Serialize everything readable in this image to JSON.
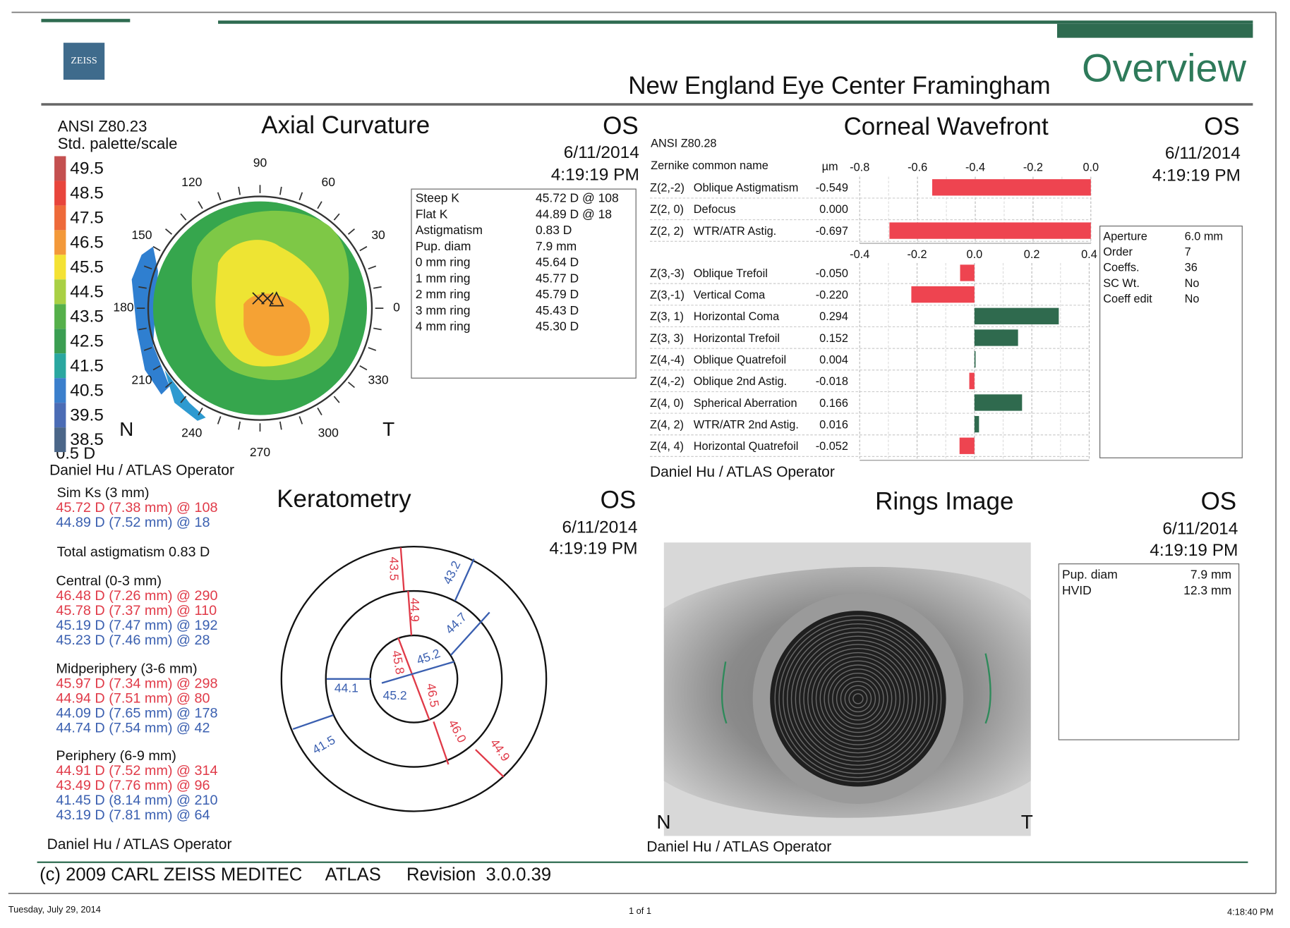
{
  "header": {
    "logo": "ZEISS",
    "clinic": "New England Eye Center Framingham",
    "title": "Overview"
  },
  "axial": {
    "title": "Axial Curvature",
    "eye": "OS",
    "date": "6/11/2014",
    "time": "4:19:19 PM",
    "standard": "ANSI Z80.23",
    "palette": "Std. palette/scale",
    "scale": {
      "values": [
        49.5,
        48.5,
        47.5,
        46.5,
        45.5,
        44.5,
        43.5,
        42.5,
        41.5,
        40.5,
        39.5,
        38.5
      ],
      "colors": [
        "#c45050",
        "#e8453c",
        "#ee6a3a",
        "#f3993a",
        "#f4e234",
        "#a9d044",
        "#55b04a",
        "#3b9e52",
        "#2aa7a0",
        "#3b7fcc",
        "#4b6cb5",
        "#4b6688"
      ],
      "step": "0.5 D"
    },
    "angles": [
      90,
      120,
      60,
      150,
      30,
      180,
      0,
      210,
      330,
      240,
      300,
      270
    ],
    "nasal": "N",
    "temporal": "T",
    "k_table": [
      [
        "Steep K",
        "45.72 D @ 108"
      ],
      [
        "Flat K",
        "44.89 D @ 18"
      ],
      [
        "Astigmatism",
        "0.83 D"
      ],
      [
        "Pup. diam",
        "7.9 mm"
      ],
      [
        "0 mm ring",
        "45.64 D"
      ],
      [
        "1 mm ring",
        "45.77 D"
      ],
      [
        "2 mm ring",
        "45.79 D"
      ],
      [
        "3 mm ring",
        "45.43 D"
      ],
      [
        "4 mm ring",
        "45.30 D"
      ]
    ],
    "operator": "Daniel Hu / ATLAS Operator"
  },
  "wavefront": {
    "title": "Corneal Wavefront",
    "eye": "OS",
    "date": "6/11/2014",
    "time": "4:19:19 PM",
    "standard": "ANSI Z80.28",
    "name_header": "Zernike common name",
    "unit": "µm",
    "colors": {
      "negative": "#ee4450",
      "positive": "#2f6a4e"
    },
    "top_chart": {
      "xlim": [
        -0.8,
        0
      ],
      "xticks": [
        -0.8,
        -0.6,
        -0.4,
        -0.2,
        {
          "value": 0,
          "label": "0.0"
        }
      ],
      "terms": [
        {
          "code": "Z(2,-2)",
          "name": "Oblique Astigmatism",
          "value": -0.549,
          "label": "-0.549"
        },
        {
          "code": "Z(2, 0)",
          "name": "Defocus",
          "value": 0,
          "label": "0.000"
        },
        {
          "code": "Z(2, 2)",
          "name": "WTR/ATR Astig.",
          "value": -0.697,
          "label": "-0.697"
        }
      ]
    },
    "bottom_chart": {
      "xlim": [
        -0.4,
        0.4
      ],
      "xticks": [
        -0.4,
        -0.2,
        {
          "value": 0,
          "label": "0.0"
        },
        0.2,
        0.4
      ],
      "terms": [
        {
          "code": "Z(3,-3)",
          "name": "Oblique Trefoil",
          "value": -0.05,
          "label": "-0.050"
        },
        {
          "code": "Z(3,-1)",
          "name": "Vertical Coma",
          "value": -0.22,
          "label": "-0.220"
        },
        {
          "code": "Z(3, 1)",
          "name": "Horizontal Coma",
          "value": 0.294,
          "label": "0.294"
        },
        {
          "code": "Z(3, 3)",
          "name": "Horizontal Trefoil",
          "value": 0.152,
          "label": "0.152"
        },
        {
          "code": "Z(4,-4)",
          "name": "Oblique Quatrefoil",
          "value": 0.004,
          "label": "0.004"
        },
        {
          "code": "Z(4,-2)",
          "name": "Oblique 2nd Astig.",
          "value": -0.018,
          "label": "-0.018"
        },
        {
          "code": "Z(4, 0)",
          "name": "Spherical Aberration",
          "value": 0.166,
          "label": "0.166"
        },
        {
          "code": "Z(4, 2)",
          "name": "WTR/ATR 2nd Astig.",
          "value": 0.016,
          "label": "0.016"
        },
        {
          "code": "Z(4, 4)",
          "name": "Horizontal Quatrefoil",
          "value": -0.052,
          "label": "-0.052"
        }
      ]
    },
    "settings": [
      [
        "Aperture",
        "6.0 mm"
      ],
      [
        "Order",
        "7"
      ],
      [
        "Coeffs.",
        "36"
      ],
      [
        "SC Wt.",
        "No"
      ],
      [
        "Coeff edit",
        "No"
      ]
    ],
    "operator": "Daniel Hu / ATLAS Operator"
  },
  "keratometry": {
    "title": "Keratometry",
    "eye": "OS",
    "date": "6/11/2014",
    "time": "4:19:19 PM",
    "sim_ks": {
      "heading": "Sim Ks (3 mm)",
      "lines": [
        {
          "text": "45.72 D (7.38 mm) @ 108",
          "color": "#e03a48"
        },
        {
          "text": "44.89 D (7.52 mm) @ 18",
          "color": "#3a5fb0"
        }
      ]
    },
    "total": "Total astigmatism 0.83 D",
    "zones": [
      {
        "heading": "Central (0-3 mm)",
        "lines": [
          {
            "text": "46.48 D (7.26 mm) @ 290",
            "color": "#e03a48"
          },
          {
            "text": "45.78 D (7.37 mm) @ 110",
            "color": "#e03a48"
          },
          {
            "text": "45.19 D (7.47 mm) @ 192",
            "color": "#3a5fb0"
          },
          {
            "text": "45.23 D (7.46 mm) @ 28",
            "color": "#3a5fb0"
          }
        ]
      },
      {
        "heading": "Midperiphery (3-6 mm)",
        "lines": [
          {
            "text": "45.97 D (7.34 mm) @ 298",
            "color": "#e03a48"
          },
          {
            "text": "44.94 D (7.51 mm) @ 80",
            "color": "#e03a48"
          },
          {
            "text": "44.09 D (7.65 mm) @ 178",
            "color": "#3a5fb0"
          },
          {
            "text": "44.74 D (7.54 mm) @ 42",
            "color": "#3a5fb0"
          }
        ]
      },
      {
        "heading": "Periphery (6-9 mm)",
        "lines": [
          {
            "text": "44.91 D (7.52 mm) @ 314",
            "color": "#e03a48"
          },
          {
            "text": "43.49 D (7.76 mm) @ 96",
            "color": "#e03a48"
          },
          {
            "text": "41.45 D (8.14 mm) @ 210",
            "color": "#3a5fb0"
          },
          {
            "text": "43.19 D (7.81 mm) @ 64",
            "color": "#3a5fb0"
          }
        ]
      }
    ],
    "map_labels": [
      {
        "text": "43.5",
        "color": "#e03a48"
      },
      {
        "text": "43.2",
        "color": "#3a5fb0"
      },
      {
        "text": "44.9",
        "color": "#e03a48"
      },
      {
        "text": "44.7",
        "color": "#3a5fb0"
      },
      {
        "text": "45.8",
        "color": "#e03a48"
      },
      {
        "text": "45.2",
        "color": "#3a5fb0"
      },
      {
        "text": "44.1",
        "color": "#3a5fb0"
      },
      {
        "text": "45.2",
        "color": "#3a5fb0"
      },
      {
        "text": "46.5",
        "color": "#e03a48"
      },
      {
        "text": "46.0",
        "color": "#e03a48"
      },
      {
        "text": "44.9",
        "color": "#e03a48"
      },
      {
        "text": "41.5",
        "color": "#3a5fb0"
      }
    ],
    "operator": "Daniel Hu / ATLAS Operator"
  },
  "rings": {
    "title": "Rings Image",
    "eye": "OS",
    "date": "6/11/2014",
    "time": "4:19:19 PM",
    "nasal": "N",
    "temporal": "T",
    "table": [
      [
        "Pup. diam",
        "7.9 mm"
      ],
      [
        "HVID",
        "12.3 mm"
      ]
    ],
    "operator": "Daniel Hu / ATLAS Operator"
  },
  "footer": {
    "copyright": "(c) 2009 CARL ZEISS MEDITEC",
    "product": "ATLAS",
    "revision": "Revision  3.0.0.39"
  },
  "print_footer": {
    "date": "Tuesday, July 29, 2014",
    "page": "1 of 1",
    "time": "4:18:40 PM"
  }
}
